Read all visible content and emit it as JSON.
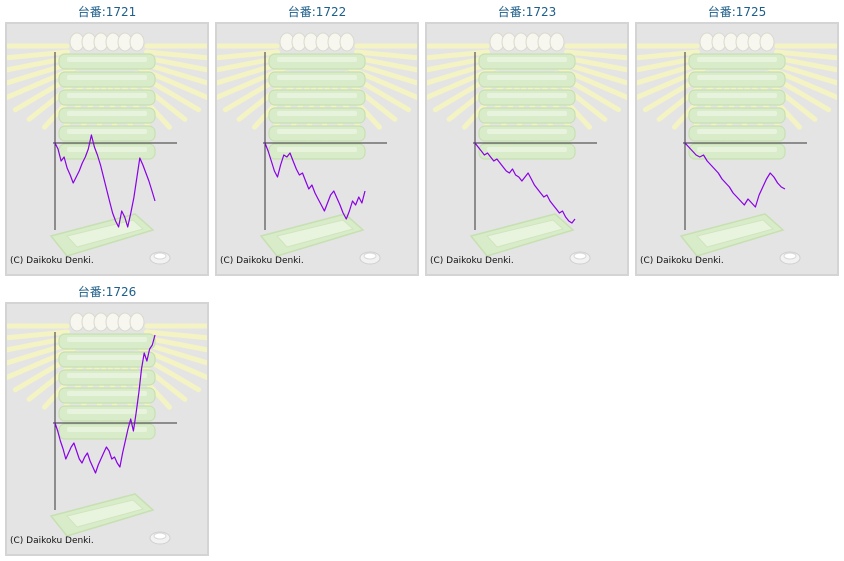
{
  "copyright": "(C) Daikoku Denki.",
  "colors": {
    "title": "#1d5f8a",
    "series": "#8a00e6",
    "axis": "#333333"
  },
  "chart_data": [
    {
      "type": "line",
      "title": "台番:1721",
      "series": [
        {
          "values": [
            0,
            -6,
            -18,
            -14,
            -25,
            -32,
            -40,
            -34,
            -28,
            -20,
            -14,
            -6,
            8,
            -4,
            -12,
            -22,
            -34,
            -46,
            -58,
            -70,
            -78,
            -84,
            -68,
            -74,
            -84,
            -70,
            -55,
            -35,
            -15,
            -22,
            -30,
            -38,
            -48,
            -58
          ]
        }
      ]
    },
    {
      "type": "line",
      "title": "台番:1722",
      "series": [
        {
          "values": [
            0,
            -8,
            -18,
            -28,
            -34,
            -22,
            -12,
            -14,
            -10,
            -18,
            -26,
            -32,
            -30,
            -38,
            -46,
            -42,
            -50,
            -56,
            -62,
            -68,
            -60,
            -52,
            -48,
            -55,
            -62,
            -70,
            -76,
            -68,
            -58,
            -62,
            -54,
            -60,
            -48
          ]
        }
      ]
    },
    {
      "type": "line",
      "title": "台番:1723",
      "series": [
        {
          "values": [
            0,
            -4,
            -8,
            -12,
            -10,
            -14,
            -18,
            -16,
            -20,
            -24,
            -28,
            -30,
            -26,
            -32,
            -34,
            -38,
            -34,
            -30,
            -36,
            -42,
            -46,
            -50,
            -54,
            -52,
            -58,
            -62,
            -66,
            -70,
            -68,
            -74,
            -78,
            -80,
            -76
          ]
        }
      ]
    },
    {
      "type": "line",
      "title": "台番:1725",
      "series": [
        {
          "values": [
            0,
            -4,
            -8,
            -12,
            -14,
            -12,
            -18,
            -22,
            -26,
            -30,
            -36,
            -40,
            -44,
            -50,
            -54,
            -58,
            -62,
            -56,
            -60,
            -64,
            -52,
            -44,
            -36,
            -30,
            -34,
            -40,
            -44,
            -46
          ]
        }
      ]
    },
    {
      "type": "line",
      "title": "台番:1726",
      "series": [
        {
          "values": [
            0,
            -8,
            -18,
            -26,
            -36,
            -30,
            -24,
            -20,
            -28,
            -36,
            -40,
            -34,
            -30,
            -38,
            -44,
            -50,
            -42,
            -36,
            -30,
            -24,
            -28,
            -36,
            -34,
            -40,
            -44,
            -30,
            -18,
            -6,
            4,
            -8,
            10,
            30,
            54,
            70,
            62,
            74,
            78,
            88
          ]
        }
      ]
    }
  ]
}
